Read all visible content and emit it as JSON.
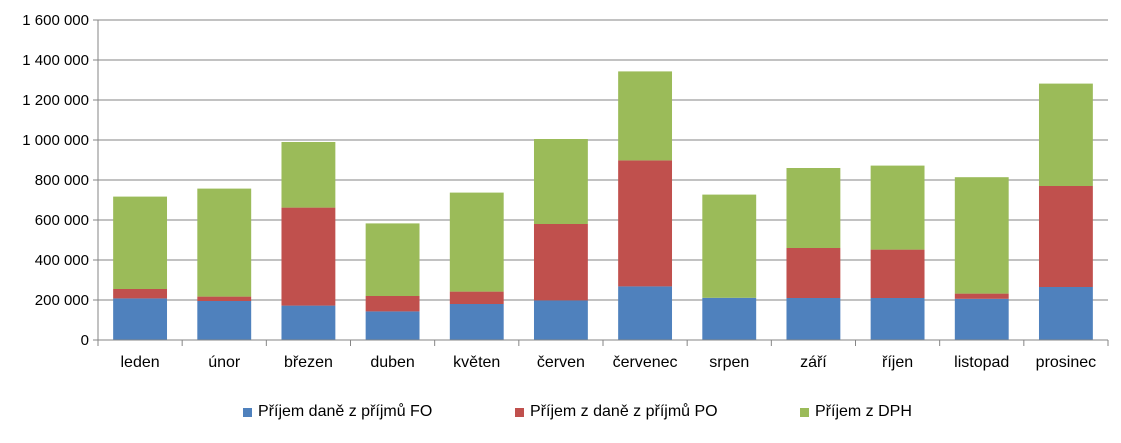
{
  "chart_data": {
    "type": "bar",
    "stacked": true,
    "categories": [
      "leden",
      "únor",
      "březen",
      "duben",
      "květen",
      "červen",
      "červenec",
      "srpen",
      "září",
      "říjen",
      "listopad",
      "prosinec"
    ],
    "series": [
      {
        "name": "Příjem daně z příjmů FO",
        "color": "#4F81BD",
        "values": [
          208000,
          195000,
          172000,
          143000,
          180000,
          198000,
          268000,
          211000,
          210000,
          210000,
          206000,
          265000
        ]
      },
      {
        "name": "Příjem z daně z příjmů PO",
        "color": "#C0504D",
        "values": [
          47000,
          22000,
          490000,
          77000,
          62000,
          382000,
          630000,
          0,
          250000,
          242000,
          26000,
          505000
        ]
      },
      {
        "name": "Příjem z DPH",
        "color": "#9BBB59",
        "values": [
          462000,
          540000,
          328000,
          363000,
          495000,
          425000,
          445000,
          516000,
          400000,
          420000,
          582000,
          512000
        ]
      }
    ],
    "ylim": [
      0,
      1600000
    ],
    "yticks": [
      0,
      200000,
      400000,
      600000,
      800000,
      1000000,
      1200000,
      1400000,
      1600000
    ],
    "ytick_labels": [
      "0",
      "200 000",
      "400 000",
      "600 000",
      "800 000",
      "1 000 000",
      "1 200 000",
      "1 400 000",
      "1 600 000"
    ],
    "grid": true,
    "legend_position": "bottom"
  }
}
